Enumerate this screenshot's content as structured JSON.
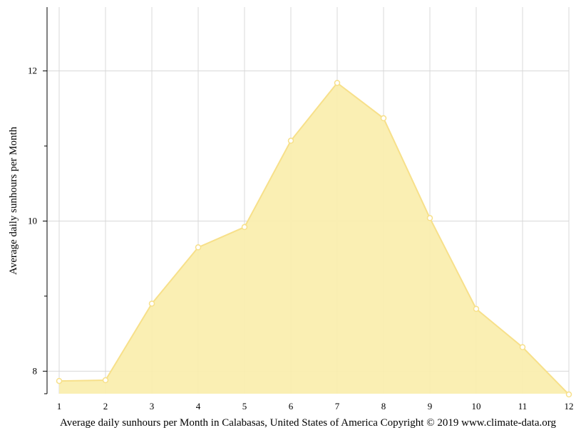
{
  "chart_data": {
    "type": "area",
    "title": "",
    "xlabel": "Average daily sunhours per Month in Calabasas, United States of America Copyright © 2019 www.climate-data.org",
    "ylabel": "Average daily sunhours per Month",
    "x": [
      1,
      2,
      3,
      4,
      5,
      6,
      7,
      8,
      9,
      10,
      11,
      12
    ],
    "series": [
      {
        "values": [
          7.87,
          7.88,
          8.9,
          9.65,
          9.92,
          11.07,
          11.84,
          11.37,
          10.04,
          8.83,
          8.32,
          7.69
        ]
      }
    ],
    "xlim": [
      1,
      12
    ],
    "ylim": [
      7.7,
      12.85
    ],
    "y_ticks": [
      8,
      10,
      12
    ],
    "grid": true,
    "colors": {
      "fill": "#faeeaf",
      "line": "#f7e08a",
      "grid": "#d8d8d8",
      "axis": "#000000"
    }
  }
}
